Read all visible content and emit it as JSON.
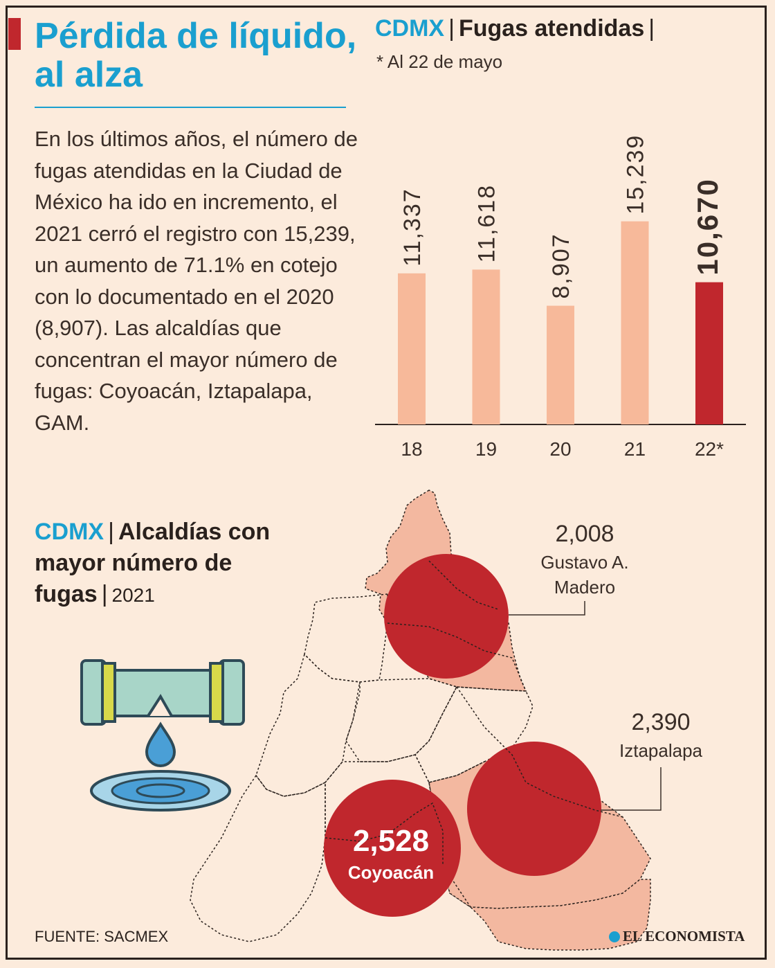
{
  "headline": "Pérdida de líquido, al alza",
  "body_text": "En los últimos años, el número de fugas atendidas en la Ciudad de México ha ido en incremento, el 2021 cerró el registro con 15,239, un aumento de 71.1% en cotejo con lo documentado en el 2020 (8,907). Las alcaldías que concentran el mayor número de fugas: Coyoacán, Iztapalapa, GAM.",
  "bar_section": {
    "title_prefix": "CDMX",
    "separator": "|",
    "title": "Fugas atendidas",
    "title_trailing": "|",
    "note": "* Al 22 de mayo"
  },
  "map_section": {
    "title_prefix": "CDMX",
    "separator": "|",
    "title": "Alcaldías con mayor número de fugas",
    "year_separator": "|",
    "year": "2021"
  },
  "source": "FUENTE: SACMEX",
  "brand": "EL ECONOMISTA",
  "colors": {
    "accent_blue": "#1a9fcf",
    "bar_light": "#f7b99a",
    "bar_highlight": "#c0272d",
    "background": "#fcebdc"
  },
  "chart_data": [
    {
      "type": "bar",
      "title": "Fugas atendidas",
      "categories": [
        "18",
        "19",
        "20",
        "21",
        "22*"
      ],
      "values": [
        11337,
        11618,
        8907,
        15239,
        10670
      ],
      "value_labels": [
        "11,337",
        "11,618",
        "8,907",
        "15,239",
        "10,670"
      ],
      "highlight_index": 4,
      "ylim": [
        0,
        19000
      ]
    },
    {
      "type": "bubble-map",
      "title": "Alcaldías con mayor número de fugas",
      "points": [
        {
          "name": "Gustavo A. Madero",
          "name_lines": [
            "Gustavo A.",
            "Madero"
          ],
          "value": 2008,
          "value_label": "2,008"
        },
        {
          "name": "Iztapalapa",
          "name_lines": [
            "Iztapalapa"
          ],
          "value": 2390,
          "value_label": "2,390"
        },
        {
          "name": "Coyoacán",
          "name_lines": [
            "Coyoacán"
          ],
          "value": 2528,
          "value_label": "2,528"
        }
      ]
    }
  ]
}
